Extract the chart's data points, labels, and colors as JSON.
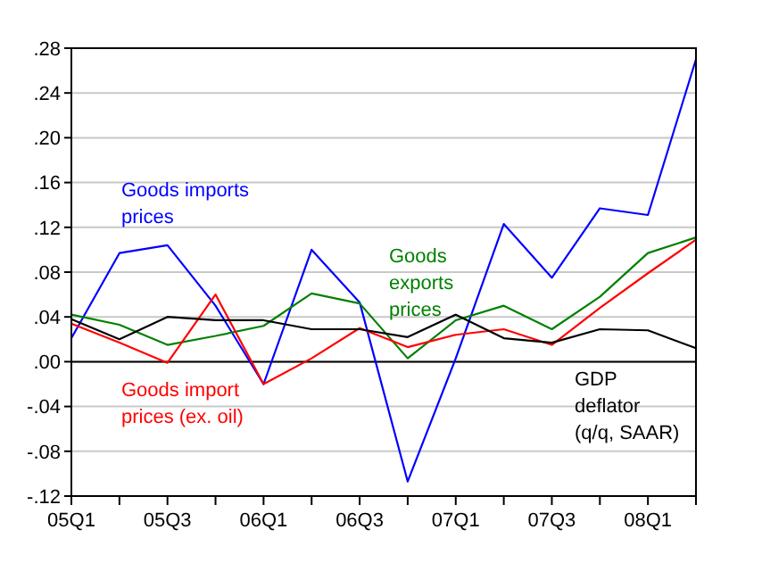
{
  "chart_data": {
    "type": "line",
    "categories": [
      "05Q1",
      null,
      "05Q3",
      null,
      "06Q1",
      null,
      "06Q3",
      null,
      "07Q1",
      null,
      "07Q3",
      null,
      "08Q1",
      null
    ],
    "series": [
      {
        "name": "Goods imports prices",
        "color": "#0000ff",
        "values": [
          0.021,
          0.097,
          0.104,
          0.05,
          -0.02,
          0.1,
          0.053,
          -0.107,
          0.003,
          0.123,
          0.075,
          0.137,
          0.131,
          0.27
        ]
      },
      {
        "name": "Goods exports prices",
        "color": "#008000",
        "values": [
          0.042,
          0.033,
          0.015,
          0.023,
          0.032,
          0.061,
          0.052,
          0.003,
          0.037,
          0.05,
          0.029,
          0.058,
          0.097,
          0.111
        ]
      },
      {
        "name": "Goods import prices (ex. oil)",
        "color": "#ff0000",
        "values": [
          0.034,
          0.017,
          -0.001,
          0.06,
          -0.02,
          0.003,
          0.03,
          0.013,
          0.024,
          0.029,
          0.015,
          0.048,
          0.079,
          0.109
        ]
      },
      {
        "name": "GDP deflator (q/q, SAAR)",
        "color": "#000000",
        "values": [
          0.038,
          0.02,
          0.04,
          0.037,
          0.037,
          0.029,
          0.029,
          0.022,
          0.042,
          0.021,
          0.017,
          0.029,
          0.028,
          0.012
        ]
      }
    ],
    "ylim": [
      -0.12,
      0.28
    ],
    "yticks": [
      {
        "value": -0.12,
        "label": "-.12"
      },
      {
        "value": -0.08,
        "label": "-.08"
      },
      {
        "value": -0.04,
        "label": "-.04"
      },
      {
        "value": 0,
        "label": ".00"
      },
      {
        "value": 0.04,
        "label": ".04"
      },
      {
        "value": 0.08,
        "label": ".08"
      },
      {
        "value": 0.12,
        "label": ".12"
      },
      {
        "value": 0.16,
        "label": ".16"
      },
      {
        "value": 0.2,
        "label": ".20"
      },
      {
        "value": 0.24,
        "label": ".24"
      },
      {
        "value": 0.28,
        "label": ".28"
      }
    ],
    "ref_lines": [
      {
        "axis": "y",
        "value": 0,
        "color": "#000000"
      }
    ],
    "grid": "y",
    "line_style": "solid"
  }
}
